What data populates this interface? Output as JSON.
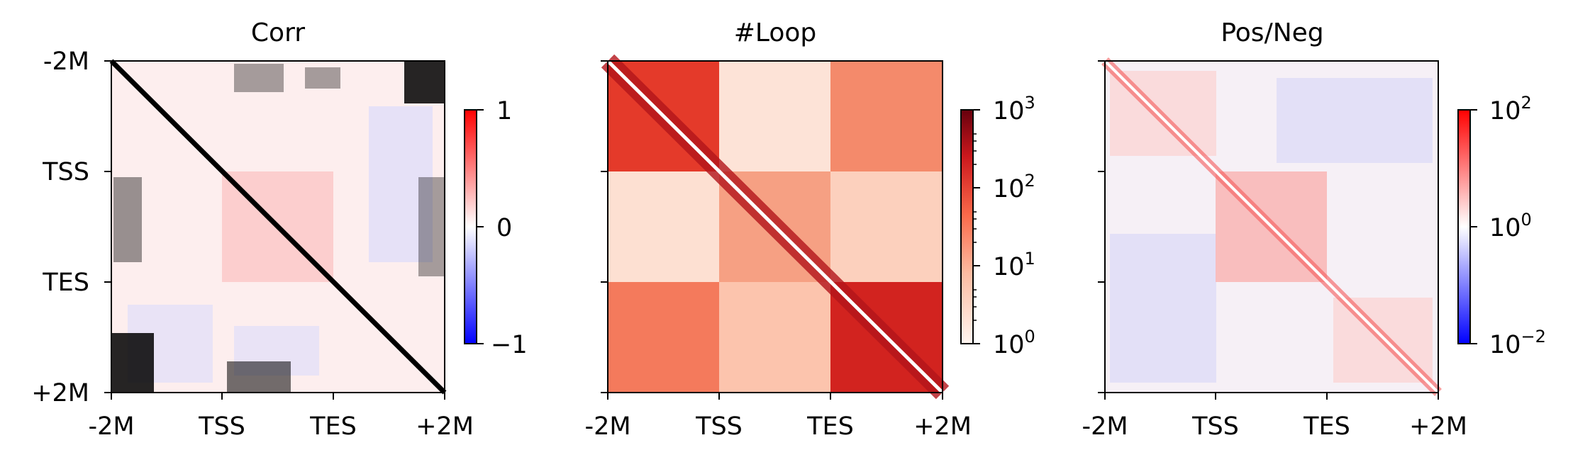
{
  "chart_data": [
    {
      "type": "heatmap",
      "title": "Corr",
      "x_ticks": [
        "-2M",
        "TSS",
        "TES",
        "+2M"
      ],
      "y_ticks": [
        "-2M",
        "TSS",
        "TES",
        "+2M"
      ],
      "show_y_tick_labels": true,
      "colorscale": [
        "#0000ff",
        "#ffffff",
        "#ff0000"
      ],
      "colorbar": {
        "scale": "linear",
        "range": [
          -1,
          1
        ],
        "ticks": [
          {
            "value": 1,
            "label": "1"
          },
          {
            "value": 0,
            "label": "0"
          },
          {
            "value": -1,
            "label": "−1"
          }
        ]
      },
      "diagonal_color": "#000000",
      "grid": false
    },
    {
      "type": "heatmap",
      "title": "#Loop",
      "x_ticks": [
        "-2M",
        "TSS",
        "TES",
        "+2M"
      ],
      "y_ticks": [
        "-2M",
        "TSS",
        "TES",
        "+2M"
      ],
      "show_y_tick_labels": false,
      "colorscale": [
        "#fff5f0",
        "#fcbba1",
        "#fb6a4a",
        "#cb181d",
        "#67000d"
      ],
      "colorbar": {
        "scale": "log",
        "range": [
          1,
          1000
        ],
        "ticks": [
          {
            "value": 1000,
            "base": "10",
            "exp": "3"
          },
          {
            "value": 100,
            "base": "10",
            "exp": "2"
          },
          {
            "value": 10,
            "base": "10",
            "exp": "1"
          },
          {
            "value": 1,
            "base": "10",
            "exp": "0"
          }
        ]
      },
      "diagonal_color": "#ffffff",
      "grid": false
    },
    {
      "type": "heatmap",
      "title": "Pos/Neg",
      "x_ticks": [
        "-2M",
        "TSS",
        "TES",
        "+2M"
      ],
      "y_ticks": [
        "-2M",
        "TSS",
        "TES",
        "+2M"
      ],
      "show_y_tick_labels": false,
      "colorscale": [
        "#0000ff",
        "#ffffff",
        "#ff0000"
      ],
      "colorbar": {
        "scale": "log",
        "range": [
          0.01,
          100
        ],
        "ticks": [
          {
            "value": 100,
            "base": "10",
            "exp": "2"
          },
          {
            "value": 1,
            "base": "10",
            "exp": "0"
          },
          {
            "value": 0.01,
            "base": "10",
            "exp": "−2"
          }
        ]
      },
      "diagonal_color": "#ffffff",
      "grid": false
    }
  ]
}
